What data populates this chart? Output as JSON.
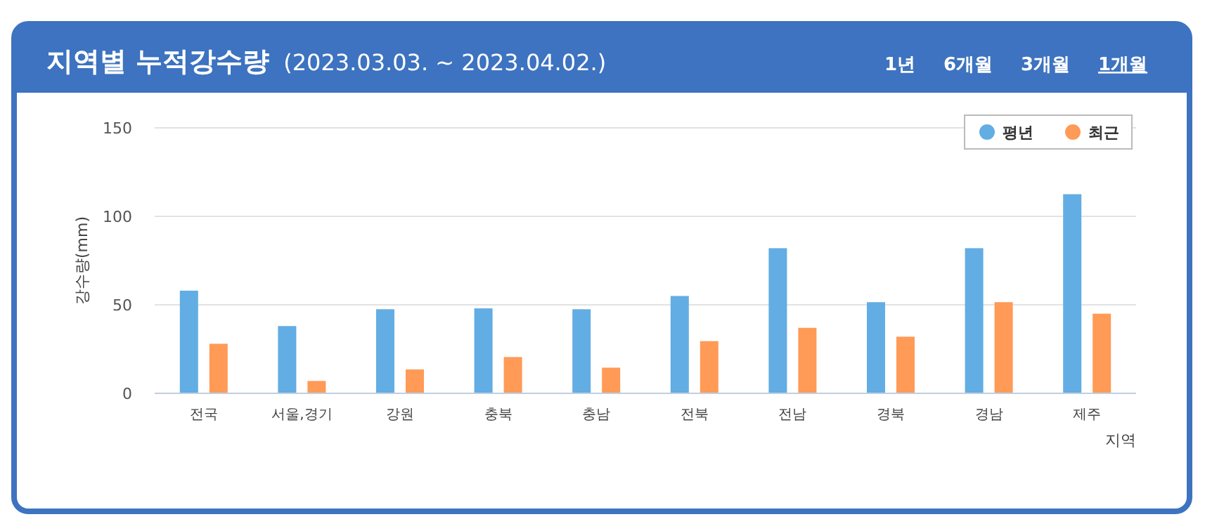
{
  "chart_data": {
    "type": "bar",
    "title": "지역별 누적강수량",
    "subtitle": "(2023.03.03. ~ 2023.04.02.)",
    "annotations": [
      "1년",
      "6개월",
      "3개월",
      "1개월"
    ],
    "xlabel": "지역",
    "ylabel": "강수량(mm)",
    "categories": [
      "전국",
      "서울,경기",
      "강원",
      "충북",
      "충남",
      "전북",
      "전남",
      "경북",
      "경남",
      "제주"
    ],
    "series": [
      {
        "name": "평년",
        "color": "#62ade3",
        "values": [
          58,
          38,
          47.5,
          48,
          47.5,
          55,
          82,
          51.5,
          82,
          112.5
        ]
      },
      {
        "name": "최근",
        "color": "#ff9a57",
        "values": [
          28,
          7,
          13.5,
          20.5,
          14.5,
          29.5,
          37,
          32,
          51.5,
          45
        ]
      }
    ],
    "ylim": [
      0,
      150
    ],
    "yticks": [
      0,
      50,
      100,
      150
    ],
    "grid": "y",
    "legend": "top right"
  }
}
